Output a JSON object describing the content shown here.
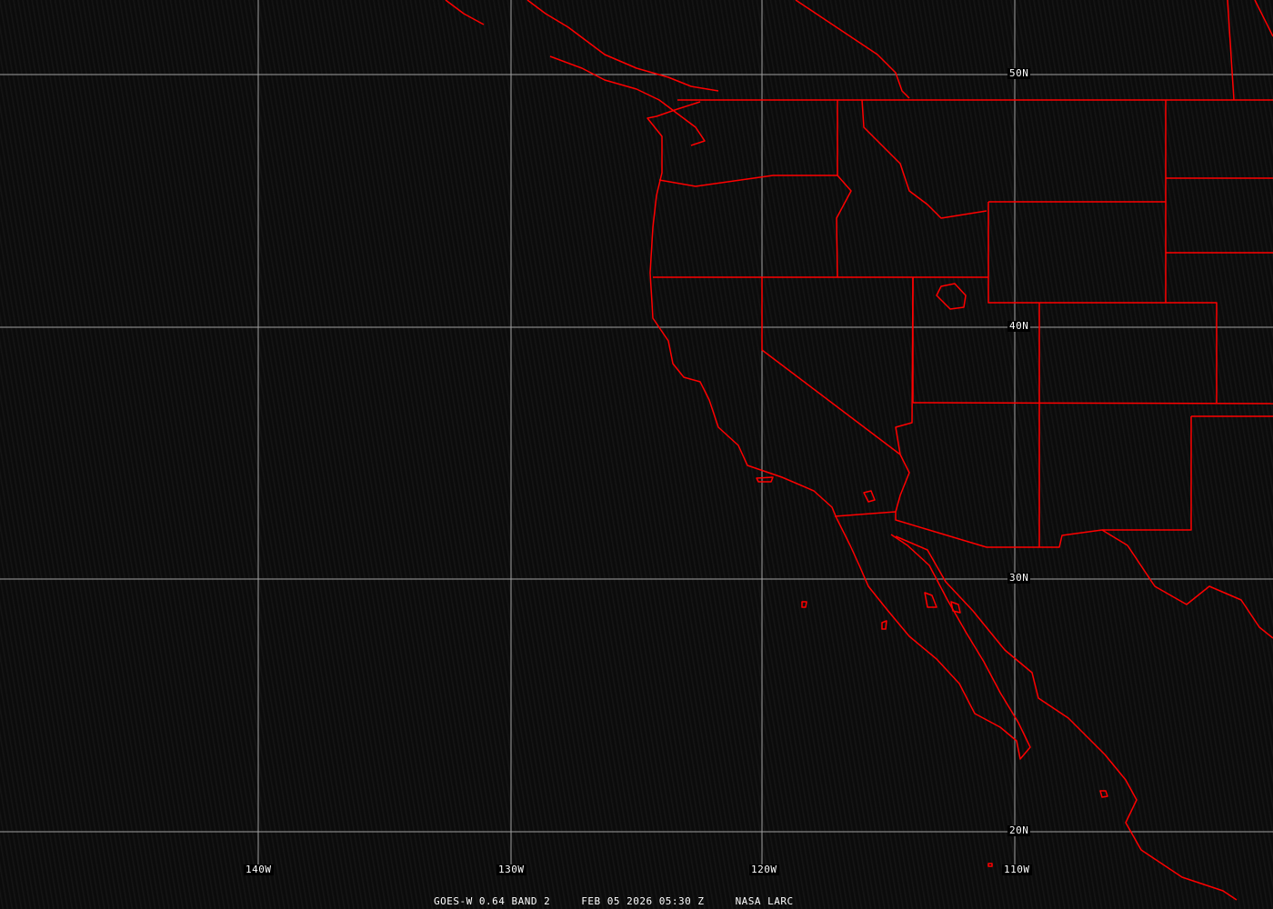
{
  "image": {
    "satellite": "GOES-W",
    "band": "GOES-W 0.64 BAND 2",
    "datetime": "FEB 05 2026 05:30 Z",
    "credit": "NASA LARC"
  },
  "grid": {
    "latitudes": [
      "50N",
      "40N",
      "30N",
      "20N"
    ],
    "longitudes": [
      "140W",
      "130W",
      "120W",
      "110W"
    ]
  },
  "colors": {
    "boundaries": "#ff0000",
    "grid": "#a0a0a0",
    "background": "#0a0a0a",
    "text": "#ffffff"
  }
}
